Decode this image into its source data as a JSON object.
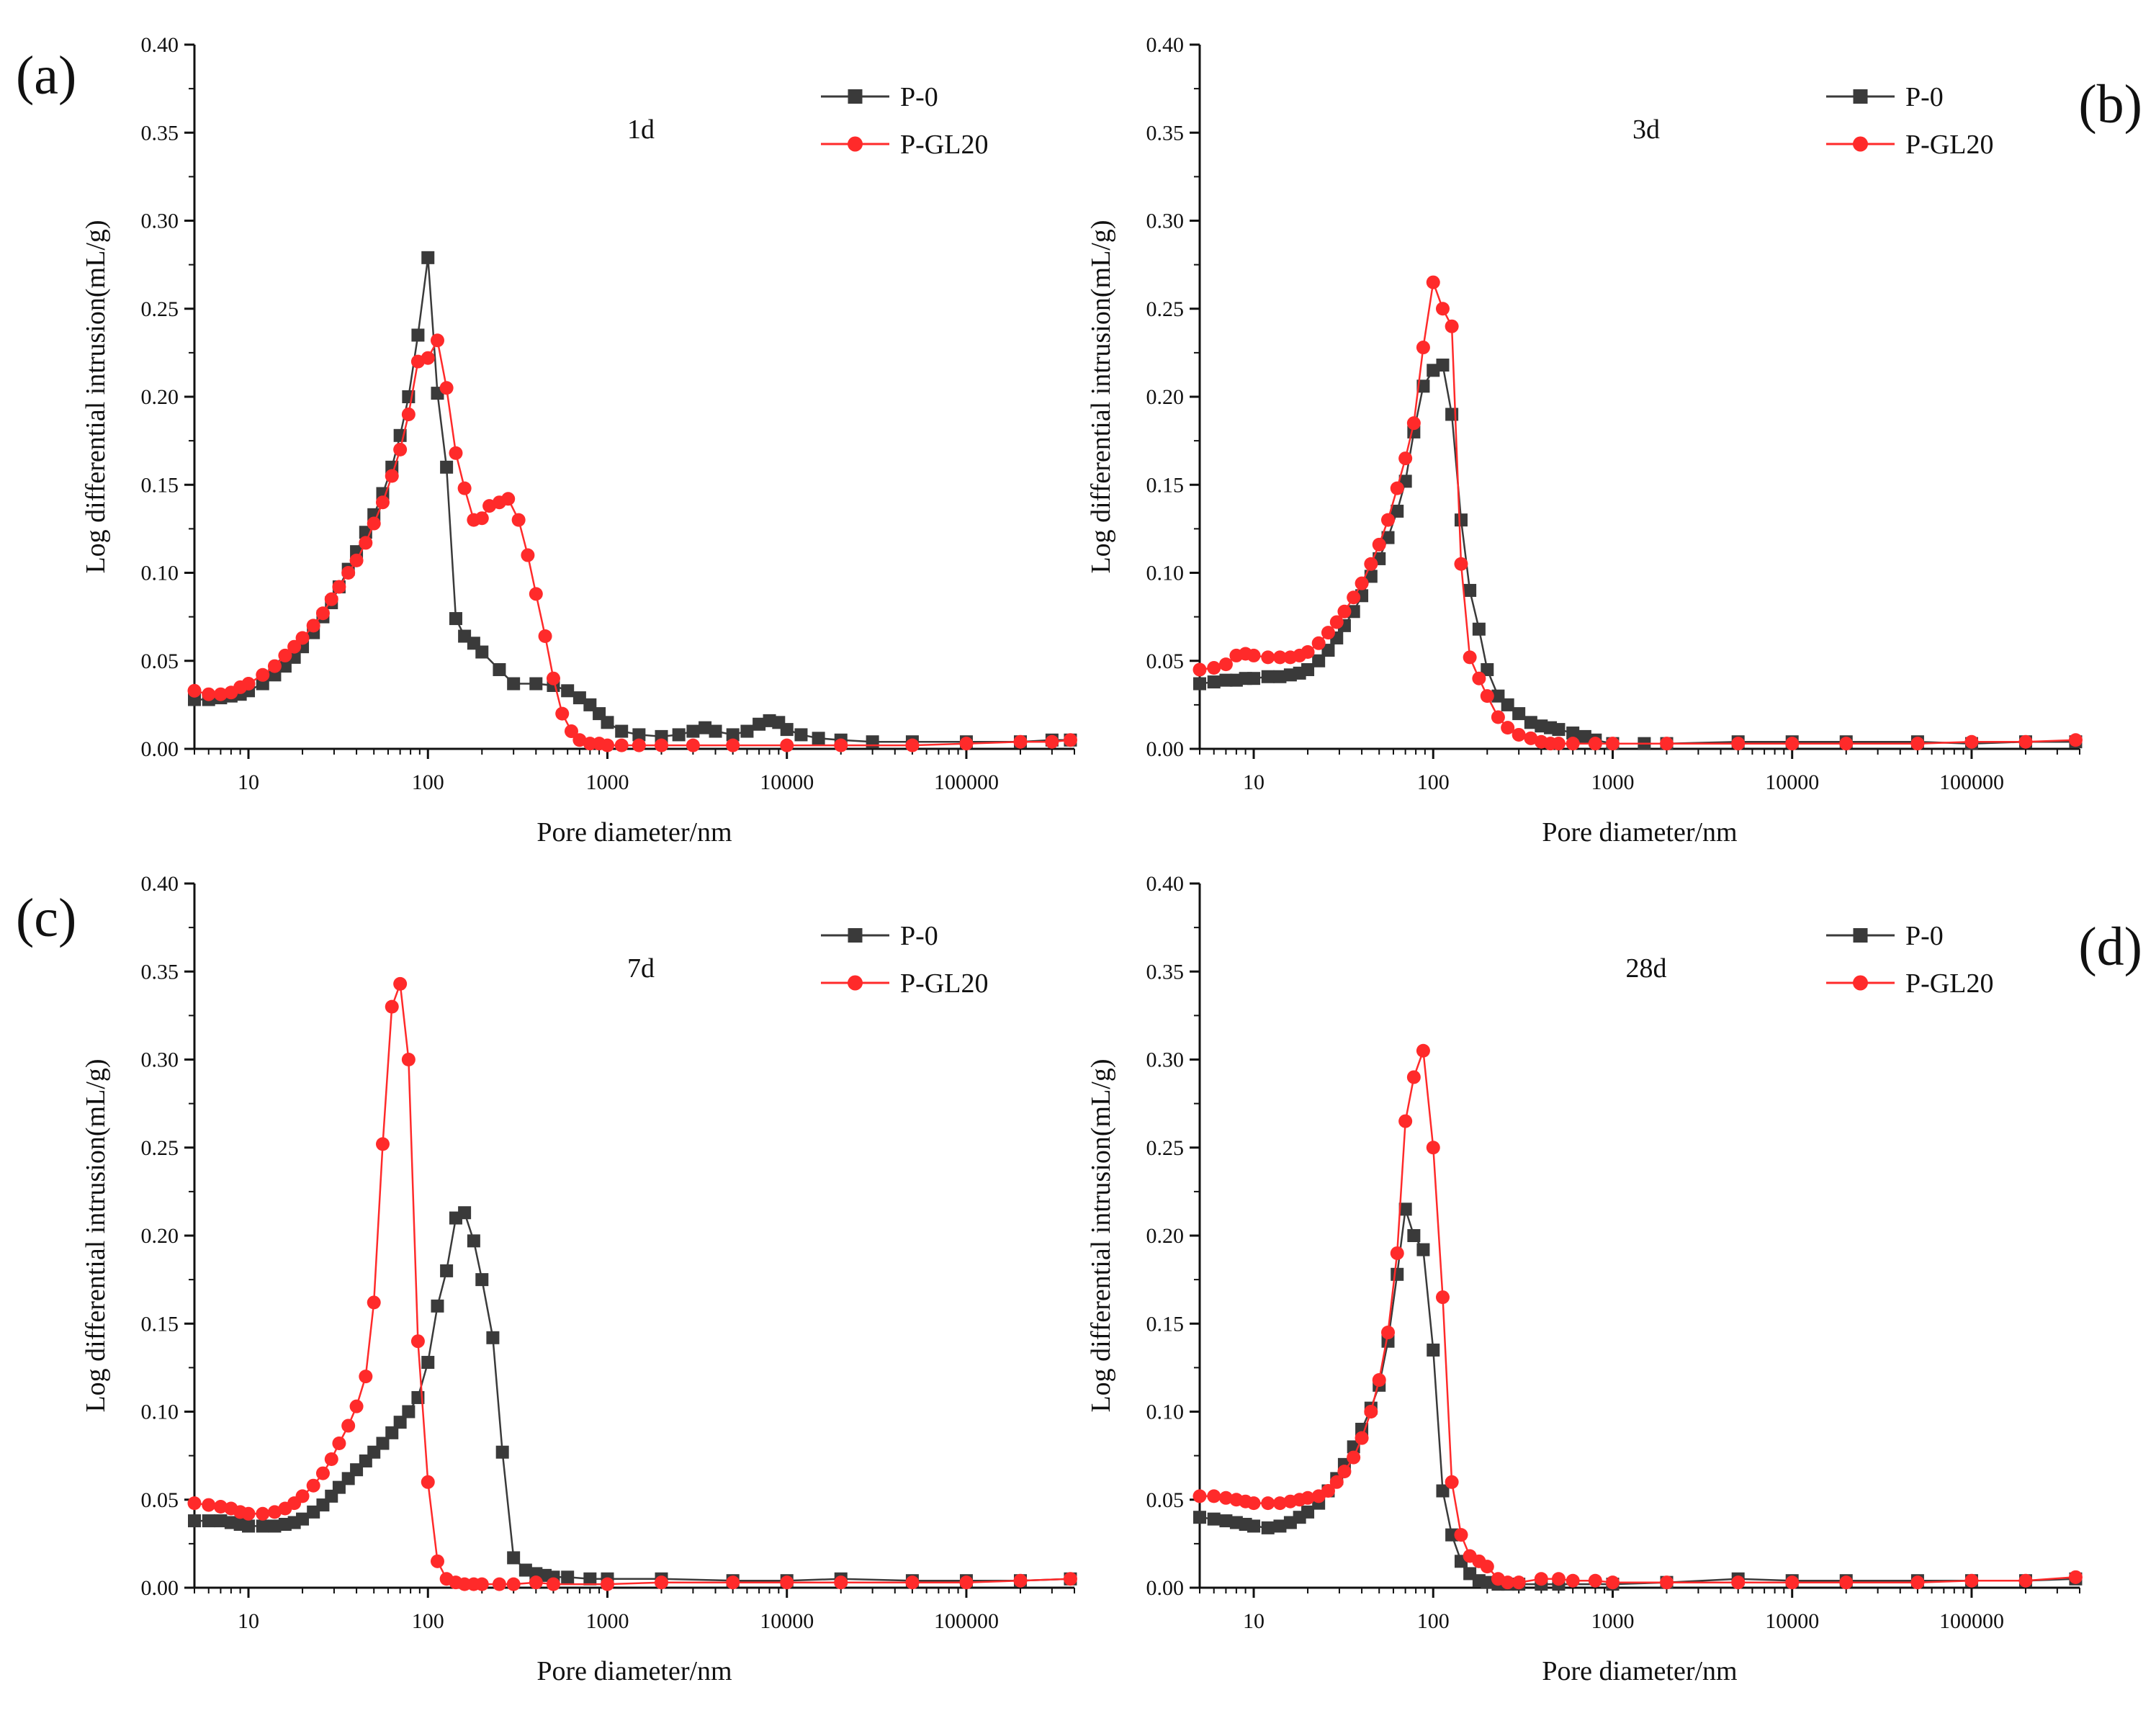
{
  "figure": {
    "colors": {
      "p0": "#3a3a3a",
      "pgl20": "#ff2a2a",
      "axis": "#111111"
    }
  },
  "chart_data": [
    {
      "type": "line",
      "panel_letter": "(a)",
      "age_label": "1d",
      "xlabel": "Pore diameter/nm",
      "ylabel": "Log differential intrusion(mL/g)",
      "xscale": "log",
      "xlim": [
        5,
        400000
      ],
      "ylim": [
        0,
        0.4
      ],
      "xticks": [
        "10",
        "100",
        "1000",
        "10000",
        "100000"
      ],
      "yticks": [
        "0.00",
        "0.05",
        "0.10",
        "0.15",
        "0.20",
        "0.25",
        "0.30",
        "0.35",
        "0.40"
      ],
      "legend": [
        "P-0",
        "P-GL20"
      ],
      "series": [
        {
          "name": "P-0",
          "x": [
            5,
            6,
            7,
            8,
            9,
            10,
            12,
            14,
            16,
            18,
            20,
            23,
            26,
            29,
            32,
            36,
            40,
            45,
            50,
            56,
            63,
            70,
            78,
            88,
            100,
            113,
            127,
            143,
            160,
            180,
            200,
            250,
            300,
            400,
            500,
            600,
            700,
            800,
            900,
            1000,
            1200,
            1500,
            2000,
            2500,
            3000,
            3500,
            4000,
            5000,
            6000,
            7000,
            8000,
            9000,
            10000,
            12000,
            15000,
            20000,
            30000,
            50000,
            100000,
            200000,
            300000,
            380000
          ],
          "y": [
            0.028,
            0.028,
            0.029,
            0.03,
            0.031,
            0.033,
            0.037,
            0.042,
            0.047,
            0.052,
            0.058,
            0.066,
            0.075,
            0.083,
            0.092,
            0.102,
            0.112,
            0.123,
            0.133,
            0.145,
            0.16,
            0.178,
            0.2,
            0.235,
            0.279,
            0.202,
            0.16,
            0.074,
            0.064,
            0.06,
            0.055,
            0.045,
            0.037,
            0.037,
            0.036,
            0.033,
            0.029,
            0.025,
            0.02,
            0.015,
            0.01,
            0.008,
            0.007,
            0.008,
            0.01,
            0.012,
            0.01,
            0.008,
            0.01,
            0.014,
            0.016,
            0.015,
            0.011,
            0.008,
            0.006,
            0.005,
            0.004,
            0.004,
            0.004,
            0.004,
            0.005,
            0.005
          ]
        },
        {
          "name": "P-GL20",
          "x": [
            5,
            6,
            7,
            8,
            9,
            10,
            12,
            14,
            16,
            18,
            20,
            23,
            26,
            29,
            32,
            36,
            40,
            45,
            50,
            56,
            63,
            70,
            78,
            88,
            100,
            113,
            127,
            143,
            160,
            180,
            200,
            220,
            250,
            280,
            320,
            360,
            400,
            450,
            500,
            560,
            630,
            700,
            800,
            900,
            1000,
            1200,
            1500,
            2000,
            3000,
            5000,
            10000,
            20000,
            50000,
            100000,
            200000,
            300000,
            380000
          ],
          "y": [
            0.033,
            0.031,
            0.031,
            0.032,
            0.035,
            0.037,
            0.042,
            0.047,
            0.053,
            0.058,
            0.063,
            0.07,
            0.077,
            0.085,
            0.092,
            0.1,
            0.107,
            0.117,
            0.128,
            0.14,
            0.155,
            0.17,
            0.19,
            0.22,
            0.222,
            0.232,
            0.205,
            0.168,
            0.148,
            0.13,
            0.131,
            0.138,
            0.14,
            0.142,
            0.13,
            0.11,
            0.088,
            0.064,
            0.04,
            0.02,
            0.01,
            0.005,
            0.003,
            0.003,
            0.002,
            0.002,
            0.002,
            0.002,
            0.002,
            0.002,
            0.002,
            0.002,
            0.002,
            0.003,
            0.004,
            0.004,
            0.005
          ]
        }
      ]
    },
    {
      "type": "line",
      "panel_letter": "(b)",
      "age_label": "3d",
      "xlabel": "Pore diameter/nm",
      "ylabel": "Log differential intrusion(mL/g)",
      "xscale": "log",
      "xlim": [
        5,
        400000
      ],
      "ylim": [
        0,
        0.4
      ],
      "xticks": [
        "10",
        "100",
        "1000",
        "10000",
        "100000"
      ],
      "yticks": [
        "0.00",
        "0.05",
        "0.10",
        "0.15",
        "0.20",
        "0.25",
        "0.30",
        "0.35",
        "0.40"
      ],
      "legend": [
        "P-0",
        "P-GL20"
      ],
      "series": [
        {
          "name": "P-0",
          "x": [
            5,
            6,
            7,
            8,
            9,
            10,
            12,
            14,
            16,
            18,
            20,
            23,
            26,
            29,
            32,
            36,
            40,
            45,
            50,
            56,
            63,
            70,
            78,
            88,
            100,
            113,
            127,
            143,
            160,
            180,
            200,
            230,
            260,
            300,
            350,
            400,
            450,
            500,
            600,
            700,
            800,
            1000,
            1500,
            2000,
            5000,
            10000,
            20000,
            50000,
            100000,
            200000,
            380000
          ],
          "y": [
            0.037,
            0.038,
            0.039,
            0.039,
            0.04,
            0.04,
            0.041,
            0.041,
            0.042,
            0.043,
            0.045,
            0.05,
            0.056,
            0.063,
            0.07,
            0.078,
            0.087,
            0.098,
            0.108,
            0.12,
            0.135,
            0.152,
            0.18,
            0.206,
            0.215,
            0.218,
            0.19,
            0.13,
            0.09,
            0.068,
            0.045,
            0.03,
            0.025,
            0.02,
            0.015,
            0.013,
            0.012,
            0.011,
            0.009,
            0.007,
            0.005,
            0.003,
            0.003,
            0.003,
            0.004,
            0.004,
            0.004,
            0.004,
            0.003,
            0.004,
            0.004
          ]
        },
        {
          "name": "P-GL20",
          "x": [
            5,
            6,
            7,
            8,
            9,
            10,
            12,
            14,
            16,
            18,
            20,
            23,
            26,
            29,
            32,
            36,
            40,
            45,
            50,
            56,
            63,
            70,
            78,
            88,
            100,
            113,
            127,
            143,
            160,
            180,
            200,
            230,
            260,
            300,
            350,
            400,
            450,
            500,
            600,
            800,
            1000,
            2000,
            5000,
            10000,
            20000,
            50000,
            100000,
            200000,
            380000
          ],
          "y": [
            0.045,
            0.046,
            0.048,
            0.053,
            0.054,
            0.053,
            0.052,
            0.052,
            0.052,
            0.053,
            0.055,
            0.06,
            0.066,
            0.072,
            0.078,
            0.086,
            0.094,
            0.105,
            0.116,
            0.13,
            0.148,
            0.165,
            0.185,
            0.228,
            0.265,
            0.25,
            0.24,
            0.105,
            0.052,
            0.04,
            0.03,
            0.018,
            0.012,
            0.008,
            0.006,
            0.004,
            0.003,
            0.003,
            0.003,
            0.003,
            0.003,
            0.003,
            0.003,
            0.003,
            0.003,
            0.003,
            0.004,
            0.004,
            0.005
          ]
        }
      ]
    },
    {
      "type": "line",
      "panel_letter": "(c)",
      "age_label": "7d",
      "xlabel": "Pore diameter/nm",
      "ylabel": "Log differential intrusion(mL/g)",
      "xscale": "log",
      "xlim": [
        5,
        400000
      ],
      "ylim": [
        0,
        0.4
      ],
      "xticks": [
        "10",
        "100",
        "1000",
        "10000",
        "100000"
      ],
      "yticks": [
        "0.00",
        "0.05",
        "0.10",
        "0.15",
        "0.20",
        "0.25",
        "0.30",
        "0.35",
        "0.40"
      ],
      "legend": [
        "P-0",
        "P-GL20"
      ],
      "series": [
        {
          "name": "P-0",
          "x": [
            5,
            6,
            7,
            8,
            9,
            10,
            12,
            14,
            16,
            18,
            20,
            23,
            26,
            29,
            32,
            36,
            40,
            45,
            50,
            56,
            63,
            70,
            78,
            88,
            100,
            113,
            127,
            143,
            160,
            180,
            200,
            230,
            260,
            300,
            350,
            400,
            450,
            500,
            600,
            800,
            1000,
            2000,
            5000,
            10000,
            20000,
            50000,
            100000,
            200000,
            380000
          ],
          "y": [
            0.038,
            0.038,
            0.038,
            0.037,
            0.036,
            0.035,
            0.035,
            0.035,
            0.036,
            0.037,
            0.039,
            0.043,
            0.047,
            0.052,
            0.057,
            0.062,
            0.067,
            0.072,
            0.077,
            0.082,
            0.088,
            0.094,
            0.1,
            0.108,
            0.128,
            0.16,
            0.18,
            0.21,
            0.213,
            0.197,
            0.175,
            0.142,
            0.077,
            0.017,
            0.01,
            0.008,
            0.007,
            0.006,
            0.006,
            0.005,
            0.005,
            0.005,
            0.004,
            0.004,
            0.005,
            0.004,
            0.004,
            0.004,
            0.005
          ]
        },
        {
          "name": "P-GL20",
          "x": [
            5,
            6,
            7,
            8,
            9,
            10,
            12,
            14,
            16,
            18,
            20,
            23,
            26,
            29,
            32,
            36,
            40,
            45,
            50,
            56,
            63,
            70,
            78,
            88,
            100,
            113,
            127,
            143,
            160,
            180,
            200,
            250,
            300,
            400,
            500,
            1000,
            2000,
            5000,
            10000,
            20000,
            50000,
            100000,
            200000,
            380000
          ],
          "y": [
            0.048,
            0.047,
            0.046,
            0.045,
            0.043,
            0.042,
            0.042,
            0.043,
            0.045,
            0.048,
            0.052,
            0.058,
            0.065,
            0.073,
            0.082,
            0.092,
            0.103,
            0.12,
            0.162,
            0.252,
            0.33,
            0.343,
            0.3,
            0.14,
            0.06,
            0.015,
            0.005,
            0.003,
            0.002,
            0.002,
            0.002,
            0.002,
            0.002,
            0.003,
            0.002,
            0.002,
            0.003,
            0.003,
            0.003,
            0.003,
            0.003,
            0.003,
            0.004,
            0.005
          ]
        }
      ]
    },
    {
      "type": "line",
      "panel_letter": "(d)",
      "age_label": "28d",
      "xlabel": "Pore diameter/nm",
      "ylabel": "Log differential intrusion(mL/g)",
      "xscale": "log",
      "xlim": [
        5,
        400000
      ],
      "ylim": [
        0,
        0.4
      ],
      "xticks": [
        "10",
        "100",
        "1000",
        "10000",
        "100000"
      ],
      "yticks": [
        "0.00",
        "0.05",
        "0.10",
        "0.15",
        "0.20",
        "0.25",
        "0.30",
        "0.35",
        "0.40"
      ],
      "legend": [
        "P-0",
        "P-GL20"
      ],
      "series": [
        {
          "name": "P-0",
          "x": [
            5,
            6,
            7,
            8,
            9,
            10,
            12,
            14,
            16,
            18,
            20,
            23,
            26,
            29,
            32,
            36,
            40,
            45,
            50,
            56,
            63,
            70,
            78,
            88,
            100,
            113,
            127,
            143,
            160,
            180,
            200,
            230,
            260,
            300,
            400,
            500,
            1000,
            2000,
            5000,
            10000,
            20000,
            50000,
            100000,
            200000,
            380000
          ],
          "y": [
            0.04,
            0.039,
            0.038,
            0.037,
            0.036,
            0.035,
            0.034,
            0.035,
            0.037,
            0.04,
            0.043,
            0.048,
            0.055,
            0.062,
            0.07,
            0.08,
            0.09,
            0.102,
            0.115,
            0.14,
            0.178,
            0.215,
            0.2,
            0.192,
            0.135,
            0.055,
            0.03,
            0.015,
            0.008,
            0.004,
            0.003,
            0.002,
            0.002,
            0.002,
            0.002,
            0.002,
            0.002,
            0.003,
            0.005,
            0.004,
            0.004,
            0.004,
            0.004,
            0.004,
            0.005
          ]
        },
        {
          "name": "P-GL20",
          "x": [
            5,
            6,
            7,
            8,
            9,
            10,
            12,
            14,
            16,
            18,
            20,
            23,
            26,
            29,
            32,
            36,
            40,
            45,
            50,
            56,
            63,
            70,
            78,
            88,
            100,
            113,
            127,
            143,
            160,
            180,
            200,
            230,
            260,
            300,
            400,
            500,
            600,
            800,
            1000,
            2000,
            5000,
            10000,
            20000,
            50000,
            100000,
            200000,
            380000
          ],
          "y": [
            0.052,
            0.052,
            0.051,
            0.05,
            0.049,
            0.048,
            0.048,
            0.048,
            0.049,
            0.05,
            0.051,
            0.052,
            0.055,
            0.06,
            0.066,
            0.074,
            0.085,
            0.1,
            0.118,
            0.145,
            0.19,
            0.265,
            0.29,
            0.305,
            0.25,
            0.165,
            0.06,
            0.03,
            0.018,
            0.015,
            0.012,
            0.005,
            0.003,
            0.003,
            0.005,
            0.005,
            0.004,
            0.004,
            0.003,
            0.003,
            0.003,
            0.003,
            0.003,
            0.003,
            0.004,
            0.004,
            0.006
          ]
        }
      ]
    }
  ]
}
